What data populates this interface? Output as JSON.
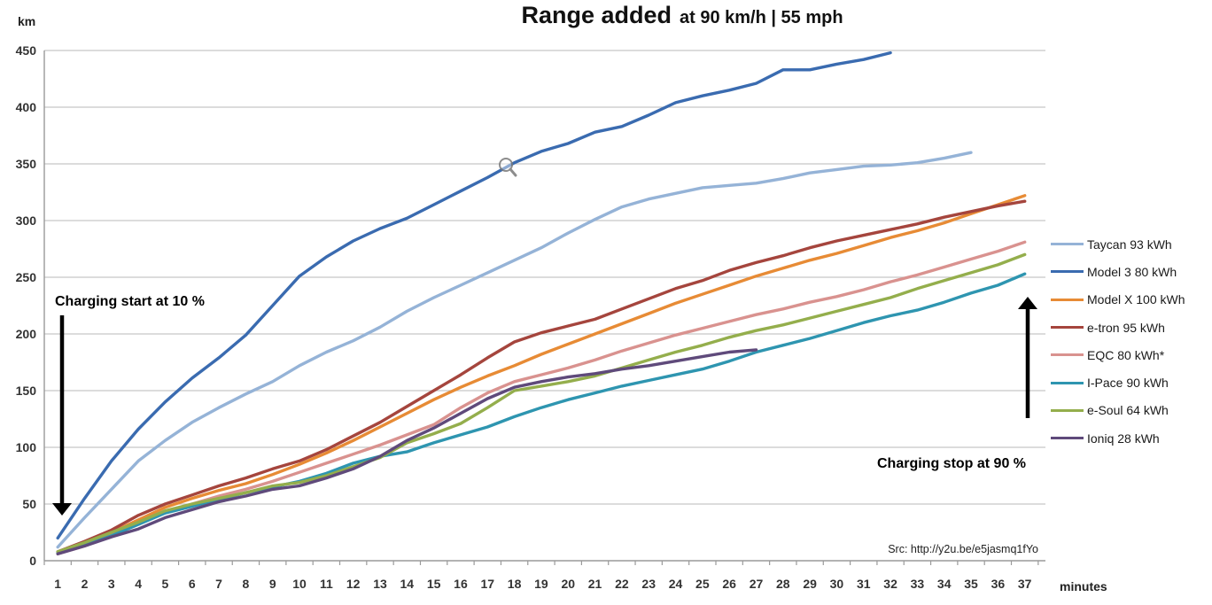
{
  "title": {
    "main": "Range added",
    "subtitle": "at 90 km/h | 55 mph"
  },
  "axes": {
    "y_unit_label": "km",
    "x_unit_label": "minutes"
  },
  "annotations": {
    "charging_start": "Charging start at 10 %",
    "charging_stop": "Charging stop at 90 %"
  },
  "source": "Src: http://y2u.be/e5jasmq1fYo",
  "chart_data": {
    "type": "line",
    "title": "Range added at 90 km/h | 55 mph",
    "xlabel": "minutes",
    "ylabel": "km",
    "x": [
      1,
      2,
      3,
      4,
      5,
      6,
      7,
      8,
      9,
      10,
      11,
      12,
      13,
      14,
      15,
      16,
      17,
      18,
      19,
      20,
      21,
      22,
      23,
      24,
      25,
      26,
      27,
      28,
      29,
      30,
      31,
      32,
      33,
      34,
      35,
      36,
      37
    ],
    "ylim": [
      0,
      450
    ],
    "y_tick_step": 50,
    "grid": "horizontal",
    "legend_position": "right",
    "series": [
      {
        "name": "Taycan 93 kWh",
        "color": "#95B3D7",
        "values": [
          12,
          38,
          63,
          88,
          106,
          122,
          135,
          147,
          158,
          172,
          184,
          194,
          206,
          220,
          232,
          243,
          254,
          265,
          276,
          289,
          301,
          312,
          319,
          324,
          329,
          331,
          333,
          337,
          342,
          345,
          348,
          349,
          351,
          355,
          360
        ]
      },
      {
        "name": "Model 3 80 kWh",
        "color": "#3A6BB0",
        "values": [
          20,
          55,
          88,
          116,
          140,
          161,
          179,
          199,
          225,
          251,
          268,
          282,
          293,
          302,
          314,
          326,
          338,
          351,
          361,
          368,
          378,
          383,
          393,
          404,
          410,
          415,
          421,
          433,
          433,
          438,
          442,
          448
        ]
      },
      {
        "name": "Model X 100 kWh",
        "color": "#E78B35",
        "values": [
          7,
          15,
          25,
          36,
          47,
          55,
          62,
          68,
          76,
          85,
          95,
          106,
          118,
          130,
          142,
          153,
          163,
          172,
          182,
          191,
          200,
          209,
          218,
          227,
          235,
          243,
          251,
          258,
          265,
          271,
          278,
          285,
          291,
          298,
          306,
          314,
          322
        ]
      },
      {
        "name": "e-tron 95 kWh",
        "color": "#A5453D",
        "values": [
          8,
          17,
          27,
          40,
          50,
          58,
          66,
          73,
          81,
          88,
          98,
          110,
          122,
          136,
          150,
          164,
          179,
          193,
          201,
          207,
          213,
          222,
          231,
          240,
          247,
          256,
          263,
          269,
          276,
          282,
          287,
          292,
          297,
          303,
          308,
          313,
          317
        ]
      },
      {
        "name": "EQC 80 kWh*",
        "color": "#D9928F",
        "values": [
          6,
          13,
          22,
          33,
          43,
          50,
          57,
          63,
          70,
          78,
          86,
          94,
          102,
          111,
          120,
          135,
          148,
          158,
          164,
          170,
          177,
          185,
          192,
          199,
          205,
          211,
          217,
          222,
          228,
          233,
          239,
          246,
          252,
          259,
          266,
          273,
          281
        ]
      },
      {
        "name": "I-Pace 90 kWh",
        "color": "#2E95B0",
        "values": [
          7,
          14,
          22,
          32,
          42,
          48,
          54,
          60,
          65,
          70,
          77,
          86,
          92,
          96,
          104,
          111,
          118,
          127,
          135,
          142,
          148,
          154,
          159,
          164,
          169,
          176,
          184,
          190,
          196,
          203,
          210,
          216,
          221,
          228,
          236,
          243,
          253
        ]
      },
      {
        "name": "e-Soul 64 kWh",
        "color": "#94AE4C",
        "values": [
          8,
          16,
          25,
          34,
          44,
          50,
          55,
          60,
          66,
          69,
          75,
          83,
          91,
          104,
          112,
          121,
          135,
          150,
          154,
          158,
          163,
          170,
          177,
          184,
          190,
          197,
          203,
          208,
          214,
          220,
          226,
          232,
          240,
          247,
          254,
          261,
          270
        ]
      },
      {
        "name": "Ioniq 28 kWh",
        "color": "#5F4A7B",
        "values": [
          6,
          13,
          21,
          28,
          38,
          45,
          52,
          57,
          63,
          66,
          73,
          81,
          92,
          106,
          117,
          130,
          143,
          153,
          158,
          162,
          165,
          169,
          172,
          176,
          180,
          184,
          186
        ]
      }
    ]
  }
}
